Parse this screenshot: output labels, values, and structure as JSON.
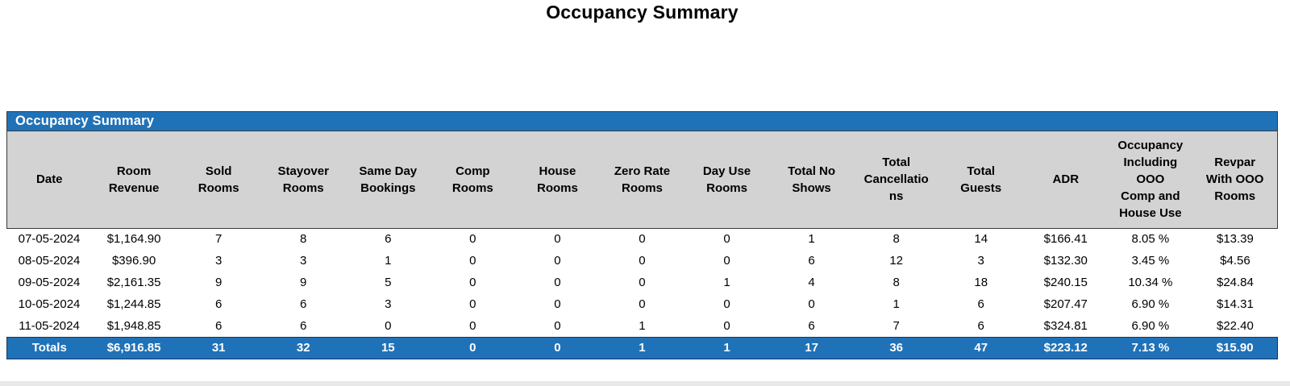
{
  "report": {
    "title": "Occupancy Summary",
    "section_title": "Occupancy Summary"
  },
  "colors": {
    "accent_blue": "#2072B8",
    "header_gray": "#D3D3D3",
    "border_dark": "#3A3A3A",
    "totals_border": "#16365C",
    "bottom_strip": "#E8E8E8"
  },
  "table": {
    "columns": [
      {
        "id": "date",
        "label": "Date"
      },
      {
        "id": "room-revenue",
        "label": "Room\nRevenue"
      },
      {
        "id": "sold-rooms",
        "label": "Sold\nRooms"
      },
      {
        "id": "stayover-rooms",
        "label": "Stayover\nRooms"
      },
      {
        "id": "same-day-bookings",
        "label": "Same Day\nBookings"
      },
      {
        "id": "comp-rooms",
        "label": "Comp\nRooms"
      },
      {
        "id": "house-rooms",
        "label": "House\nRooms"
      },
      {
        "id": "zero-rate-rooms",
        "label": "Zero Rate\nRooms"
      },
      {
        "id": "day-use-rooms",
        "label": "Day Use\nRooms"
      },
      {
        "id": "total-no-shows",
        "label": "Total No\nShows"
      },
      {
        "id": "total-cancellations",
        "label": "Total\nCancellatio\nns"
      },
      {
        "id": "total-guests",
        "label": "Total\nGuests"
      },
      {
        "id": "adr",
        "label": "ADR"
      },
      {
        "id": "occupancy-including-ooo",
        "label": "Occupancy\nIncluding\nOOO\nComp and\nHouse Use"
      },
      {
        "id": "revpar-with-ooo",
        "label": "Revpar\nWith OOO\nRooms"
      }
    ],
    "rows": [
      {
        "cells": [
          "07-05-2024",
          "$1,164.90",
          "7",
          "8",
          "6",
          "0",
          "0",
          "0",
          "0",
          "1",
          "8",
          "14",
          "$166.41",
          "8.05 %",
          "$13.39"
        ]
      },
      {
        "cells": [
          "08-05-2024",
          "$396.90",
          "3",
          "3",
          "1",
          "0",
          "0",
          "0",
          "0",
          "6",
          "12",
          "3",
          "$132.30",
          "3.45 %",
          "$4.56"
        ]
      },
      {
        "cells": [
          "09-05-2024",
          "$2,161.35",
          "9",
          "9",
          "5",
          "0",
          "0",
          "0",
          "1",
          "4",
          "8",
          "18",
          "$240.15",
          "10.34 %",
          "$24.84"
        ]
      },
      {
        "cells": [
          "10-05-2024",
          "$1,244.85",
          "6",
          "6",
          "3",
          "0",
          "0",
          "0",
          "0",
          "0",
          "1",
          "6",
          "$207.47",
          "6.90 %",
          "$14.31"
        ]
      },
      {
        "cells": [
          "11-05-2024",
          "$1,948.85",
          "6",
          "6",
          "0",
          "0",
          "0",
          "1",
          "0",
          "6",
          "7",
          "6",
          "$324.81",
          "6.90 %",
          "$22.40"
        ]
      }
    ],
    "totals": {
      "cells": [
        "Totals",
        "$6,916.85",
        "31",
        "32",
        "15",
        "0",
        "0",
        "1",
        "1",
        "17",
        "36",
        "47",
        "$223.12",
        "7.13 %",
        "$15.90"
      ]
    }
  }
}
